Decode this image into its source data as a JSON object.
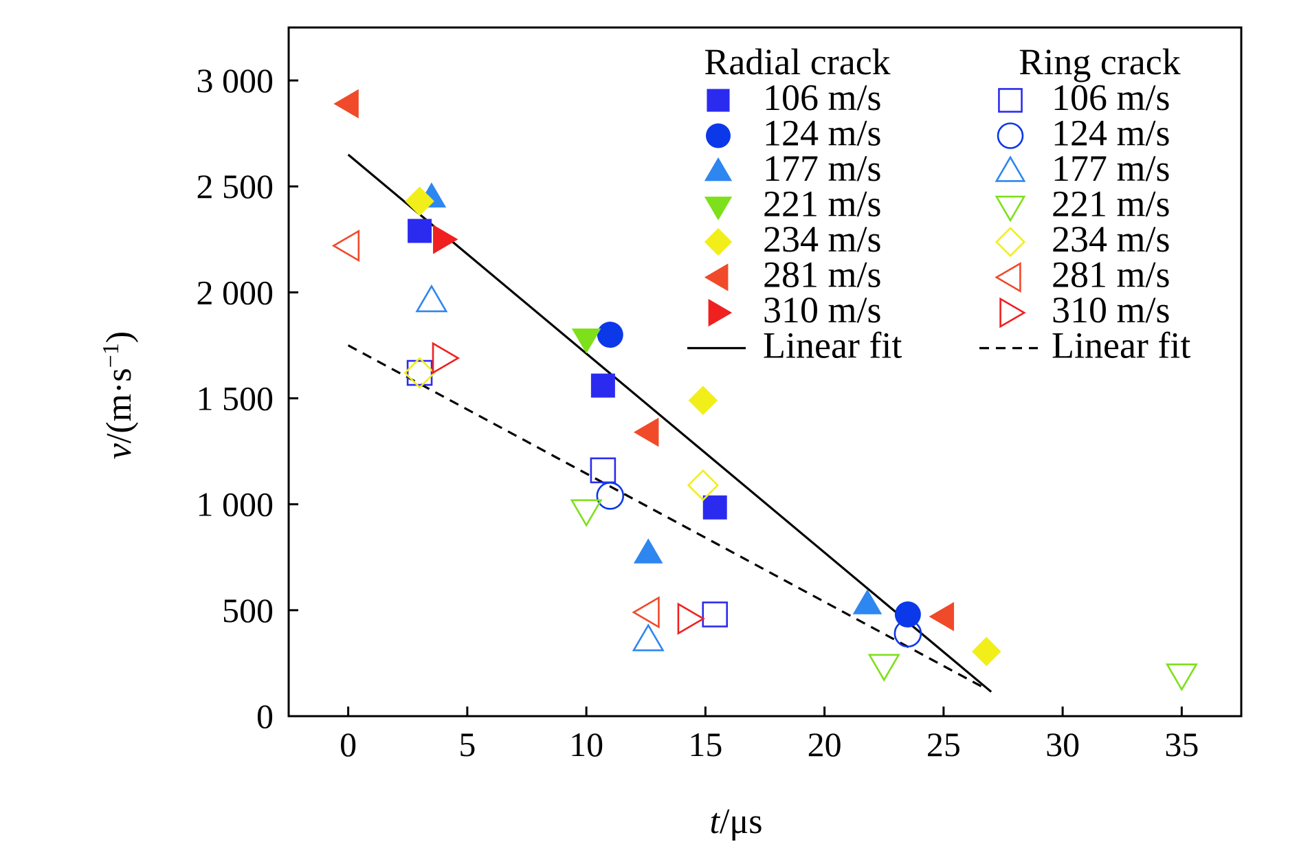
{
  "chart_data": {
    "type": "scatter",
    "xlabel_var": "t",
    "xlabel_unit": "/μs",
    "ylabel_var": "v",
    "ylabel_unit": "/(m·s",
    "ylabel_exp": "−1",
    "ylabel_close": ")",
    "xlim": [
      -2.5,
      37.5
    ],
    "ylim": [
      0,
      3250
    ],
    "x_ticks": [
      0,
      5,
      10,
      15,
      20,
      25,
      30,
      35
    ],
    "y_ticks": [
      0,
      500,
      1000,
      1500,
      2000,
      2500,
      3000
    ],
    "x_tick_labels": [
      "0",
      "5",
      "10",
      "15",
      "20",
      "25",
      "30",
      "35"
    ],
    "y_tick_labels": [
      "0",
      "500",
      "1 000",
      "1 500",
      "2 000",
      "2 500",
      "3 000"
    ],
    "grid": false,
    "legend_position": "top-right",
    "legend_groups": [
      {
        "title": "Radial crack",
        "fit_label": "Linear fit"
      },
      {
        "title": "Ring crack",
        "fit_label": "Linear fit"
      }
    ],
    "series": [
      {
        "name": "106 m/s",
        "group": "Radial crack",
        "marker": "square",
        "filled": true,
        "color": "#2b2bf0",
        "points": [
          [
            3,
            2290
          ],
          [
            10.7,
            1560
          ],
          [
            15.4,
            985
          ]
        ]
      },
      {
        "name": "124 m/s",
        "group": "Radial crack",
        "marker": "circle",
        "filled": true,
        "color": "#0b38e8",
        "points": [
          [
            11,
            1800
          ],
          [
            23.5,
            480
          ]
        ]
      },
      {
        "name": "177 m/s",
        "group": "Radial crack",
        "marker": "triangle-up",
        "filled": true,
        "color": "#2e86f0",
        "points": [
          [
            3.5,
            2450
          ],
          [
            12.6,
            770
          ],
          [
            21.8,
            530
          ]
        ]
      },
      {
        "name": "221 m/s",
        "group": "Radial crack",
        "marker": "triangle-down",
        "filled": true,
        "color": "#7ee01a",
        "points": [
          [
            10,
            1780
          ]
        ]
      },
      {
        "name": "234 m/s",
        "group": "Radial crack",
        "marker": "diamond",
        "filled": true,
        "color": "#f2ee1a",
        "points": [
          [
            3,
            2430
          ],
          [
            14.9,
            1490
          ],
          [
            26.8,
            305
          ]
        ]
      },
      {
        "name": "281 m/s",
        "group": "Radial crack",
        "marker": "triangle-left",
        "filled": true,
        "color": "#f04a2a",
        "points": [
          [
            0,
            2890
          ],
          [
            12.6,
            1340
          ],
          [
            25,
            470
          ]
        ]
      },
      {
        "name": "310 m/s",
        "group": "Radial crack",
        "marker": "triangle-right",
        "filled": true,
        "color": "#f02020",
        "points": [
          [
            4,
            2250
          ]
        ]
      },
      {
        "name": "106 m/s",
        "group": "Ring crack",
        "marker": "square",
        "filled": false,
        "color": "#2b2bf0",
        "points": [
          [
            3,
            1620
          ],
          [
            10.7,
            1160
          ],
          [
            15.4,
            480
          ]
        ]
      },
      {
        "name": "124 m/s",
        "group": "Ring crack",
        "marker": "circle",
        "filled": false,
        "color": "#0b38e8",
        "points": [
          [
            11,
            1040
          ],
          [
            23.5,
            390
          ]
        ]
      },
      {
        "name": "177 m/s",
        "group": "Ring crack",
        "marker": "triangle-up",
        "filled": false,
        "color": "#2e86f0",
        "points": [
          [
            3.5,
            1960
          ],
          [
            12.6,
            360
          ]
        ]
      },
      {
        "name": "221 m/s",
        "group": "Ring crack",
        "marker": "triangle-down",
        "filled": false,
        "color": "#7ee01a",
        "points": [
          [
            10,
            970
          ],
          [
            22.5,
            240
          ],
          [
            35,
            195
          ]
        ]
      },
      {
        "name": "234 m/s",
        "group": "Ring crack",
        "marker": "diamond",
        "filled": false,
        "color": "#f2ee1a",
        "points": [
          [
            3,
            1620
          ],
          [
            14.9,
            1090
          ]
        ]
      },
      {
        "name": "281 m/s",
        "group": "Ring crack",
        "marker": "triangle-left",
        "filled": false,
        "color": "#f04a2a",
        "points": [
          [
            0,
            2220
          ],
          [
            12.6,
            490
          ]
        ]
      },
      {
        "name": "310 m/s",
        "group": "Ring crack",
        "marker": "triangle-right",
        "filled": false,
        "color": "#f02020",
        "points": [
          [
            4,
            1690
          ],
          [
            14.3,
            460
          ]
        ]
      }
    ],
    "fits": [
      {
        "label": "Linear fit",
        "group": "Radial crack",
        "style": "solid",
        "color": "#000000",
        "x": [
          0,
          27
        ],
        "y": [
          2650,
          115
        ]
      },
      {
        "label": "Linear fit",
        "group": "Ring crack",
        "style": "dashed",
        "color": "#000000",
        "x": [
          0,
          26.6
        ],
        "y": [
          1750,
          140
        ]
      }
    ]
  }
}
